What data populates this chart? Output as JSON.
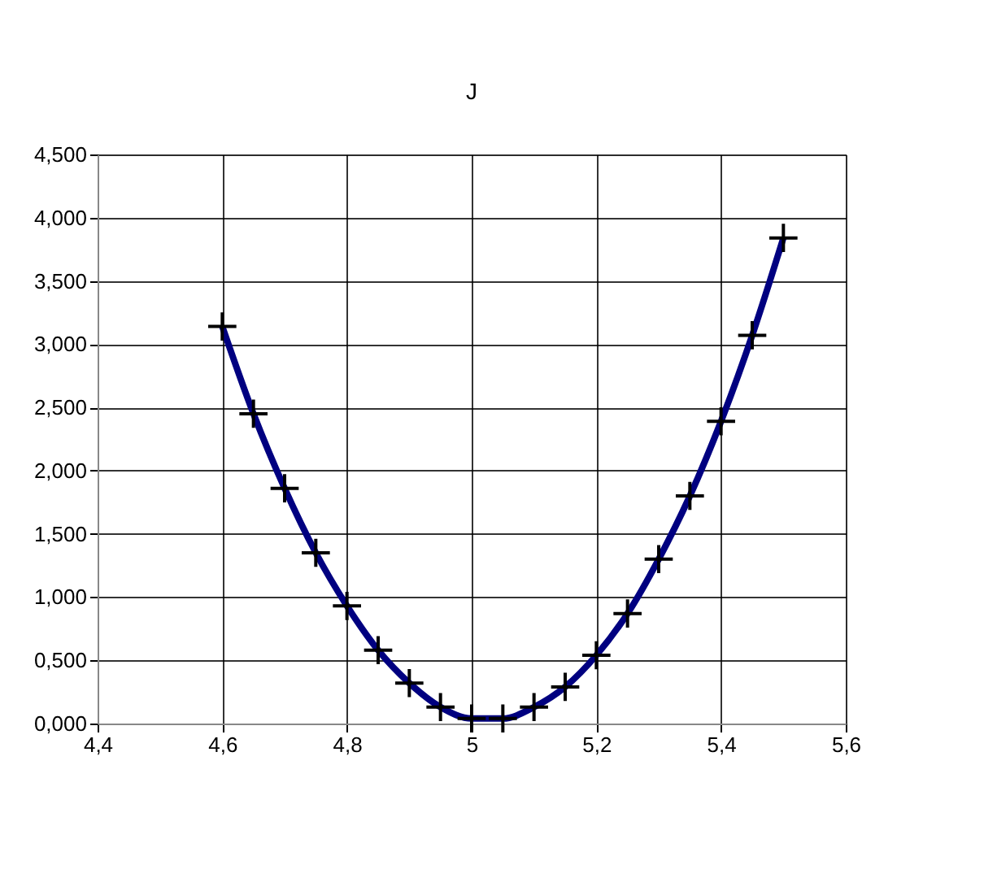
{
  "chart_data": {
    "type": "line",
    "title": "J",
    "x": [
      4.6,
      4.65,
      4.7,
      4.75,
      4.8,
      4.85,
      4.9,
      4.95,
      5.0,
      5.05,
      5.1,
      5.15,
      5.2,
      5.25,
      5.3,
      5.35,
      5.4,
      5.45,
      5.5
    ],
    "series": [
      {
        "color": "#000080",
        "values": [
          3.14,
          2.45,
          1.86,
          1.35,
          0.93,
          0.58,
          0.32,
          0.13,
          0.04,
          0.04,
          0.13,
          0.29,
          0.54,
          0.87,
          1.3,
          1.8,
          2.39,
          3.07,
          3.84
        ]
      }
    ],
    "xlim": [
      4.4,
      5.6
    ],
    "xticks": [
      {
        "value": 4.4,
        "label": "4,4"
      },
      {
        "value": 4.6,
        "label": "4,6"
      },
      {
        "value": 4.8,
        "label": "4,8"
      },
      5,
      {
        "value": 5.2,
        "label": "5,2"
      },
      {
        "value": 5.4,
        "label": "5,4"
      },
      {
        "value": 5.6,
        "label": "5,6"
      }
    ],
    "ylim": [
      0,
      4.5
    ],
    "yticks": [
      {
        "value": 0,
        "label": "0,000"
      },
      {
        "value": 0.5,
        "label": "0,500"
      },
      {
        "value": 1,
        "label": "1,000"
      },
      {
        "value": 1.5,
        "label": "1,500"
      },
      {
        "value": 2,
        "label": "2,000"
      },
      {
        "value": 2.5,
        "label": "2,500"
      },
      {
        "value": 3,
        "label": "3,000"
      },
      {
        "value": 3.5,
        "label": "3,500"
      },
      {
        "value": 4,
        "label": "4,000"
      },
      {
        "value": 4.5,
        "label": "4,500"
      }
    ],
    "grid": true,
    "marker": "cross",
    "line_style": "solid"
  }
}
